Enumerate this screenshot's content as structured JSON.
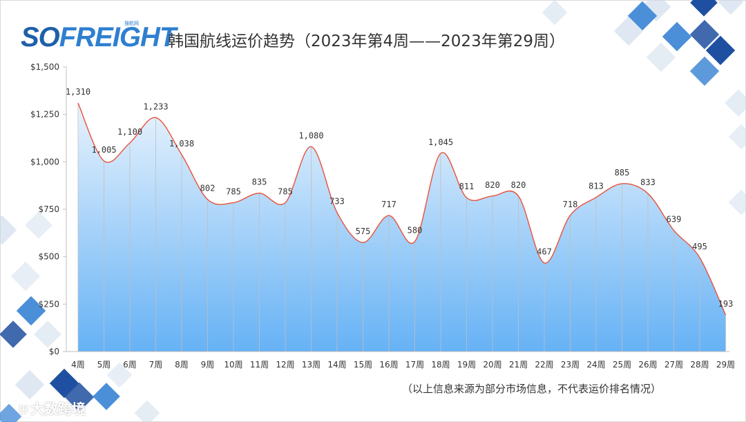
{
  "header": {
    "logo_text_a": "SO",
    "logo_text_b": "FREIGHT",
    "logo_sub": "搜航网",
    "title": "韩国航线运价趋势（2023年第4周——2023年第29周）"
  },
  "footer": {
    "note": "（以上信息来源为部分市场信息，不代表运价排名情况）",
    "watermark": "大数跨境"
  },
  "colors": {
    "line": "#e8503a",
    "area_top": "#e8f3fd",
    "area_bottom": "#66b2f5",
    "grid": "#bfbfbf",
    "deco_dark": "#1e4fa0",
    "deco_mid": "#4a8fd8",
    "deco_light": "#c9d9ea"
  },
  "chart_data": {
    "type": "area",
    "title": "韩国航线运价趋势（2023年第4周——2023年第29周）",
    "categories": [
      "4周",
      "5周",
      "6周",
      "7周",
      "8周",
      "9周",
      "10周",
      "11周",
      "12周",
      "13周",
      "14周",
      "15周",
      "16周",
      "17周",
      "18周",
      "19周",
      "20周",
      "21周",
      "22周",
      "23周",
      "24周",
      "25周",
      "26周",
      "27周",
      "28周",
      "29周"
    ],
    "values": [
      1310,
      1005,
      1100,
      1233,
      1038,
      802,
      785,
      835,
      785,
      1080,
      733,
      575,
      717,
      580,
      1045,
      811,
      820,
      820,
      467,
      718,
      813,
      885,
      833,
      639,
      495,
      193
    ],
    "labels": [
      "1,310",
      "1,005",
      "1,100",
      "1,233",
      "1,038",
      "802",
      "785",
      "835",
      "785",
      "1,080",
      "733",
      "575",
      "717",
      "580",
      "1,045",
      "811",
      "820",
      "820",
      "467",
      "718",
      "813",
      "885",
      "833",
      "639",
      "495",
      "193"
    ],
    "y_ticks": [
      0,
      250,
      500,
      750,
      1000,
      1250,
      1500
    ],
    "y_tick_labels": [
      "$0",
      "$250",
      "$500",
      "$750",
      "$1,000",
      "$1,250",
      "$1,500"
    ],
    "ylim": [
      0,
      1500
    ],
    "grid": "vertical lines at each category",
    "legend": "none"
  }
}
